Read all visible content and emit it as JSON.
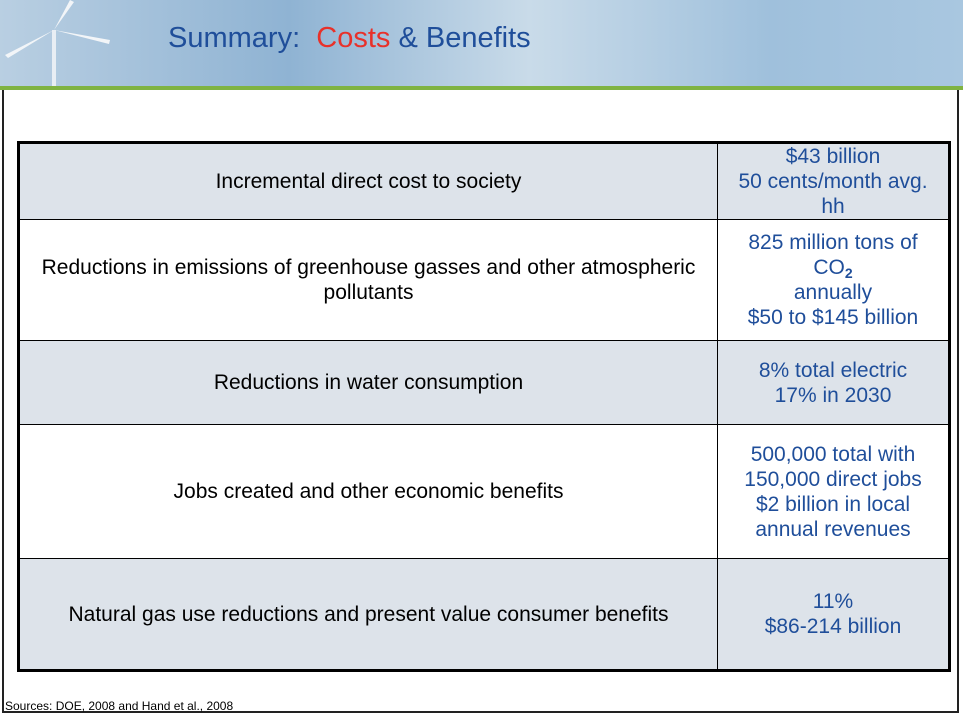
{
  "header": {
    "title_prefix": "Summary:",
    "title_highlight": "Costs",
    "title_suffix": "& Benefits"
  },
  "table": {
    "rows": [
      {
        "label": "Incremental direct cost to society",
        "lines": [
          "$43 billion",
          "50 cents/month avg. hh"
        ]
      },
      {
        "label": "Reductions in emissions of greenhouse gasses and other atmospheric pollutants",
        "lines": [
          "825 million tons of CO",
          "2",
          "annually",
          "$50 to $145 billion"
        ]
      },
      {
        "label": "Reductions in water consumption",
        "lines": [
          "8% total electric",
          "17% in 2030"
        ]
      },
      {
        "label": "Jobs created and other economic benefits",
        "lines": [
          "500,000 total with",
          "150,000 direct jobs",
          "$2 billion in local",
          "annual revenues"
        ]
      },
      {
        "label": "Natural gas use reductions and present value consumer benefits",
        "lines": [
          "11%",
          "$86-214 billion"
        ]
      }
    ]
  },
  "footer": {
    "source": "Sources: DOE, 2008 and Hand et al., 2008"
  }
}
